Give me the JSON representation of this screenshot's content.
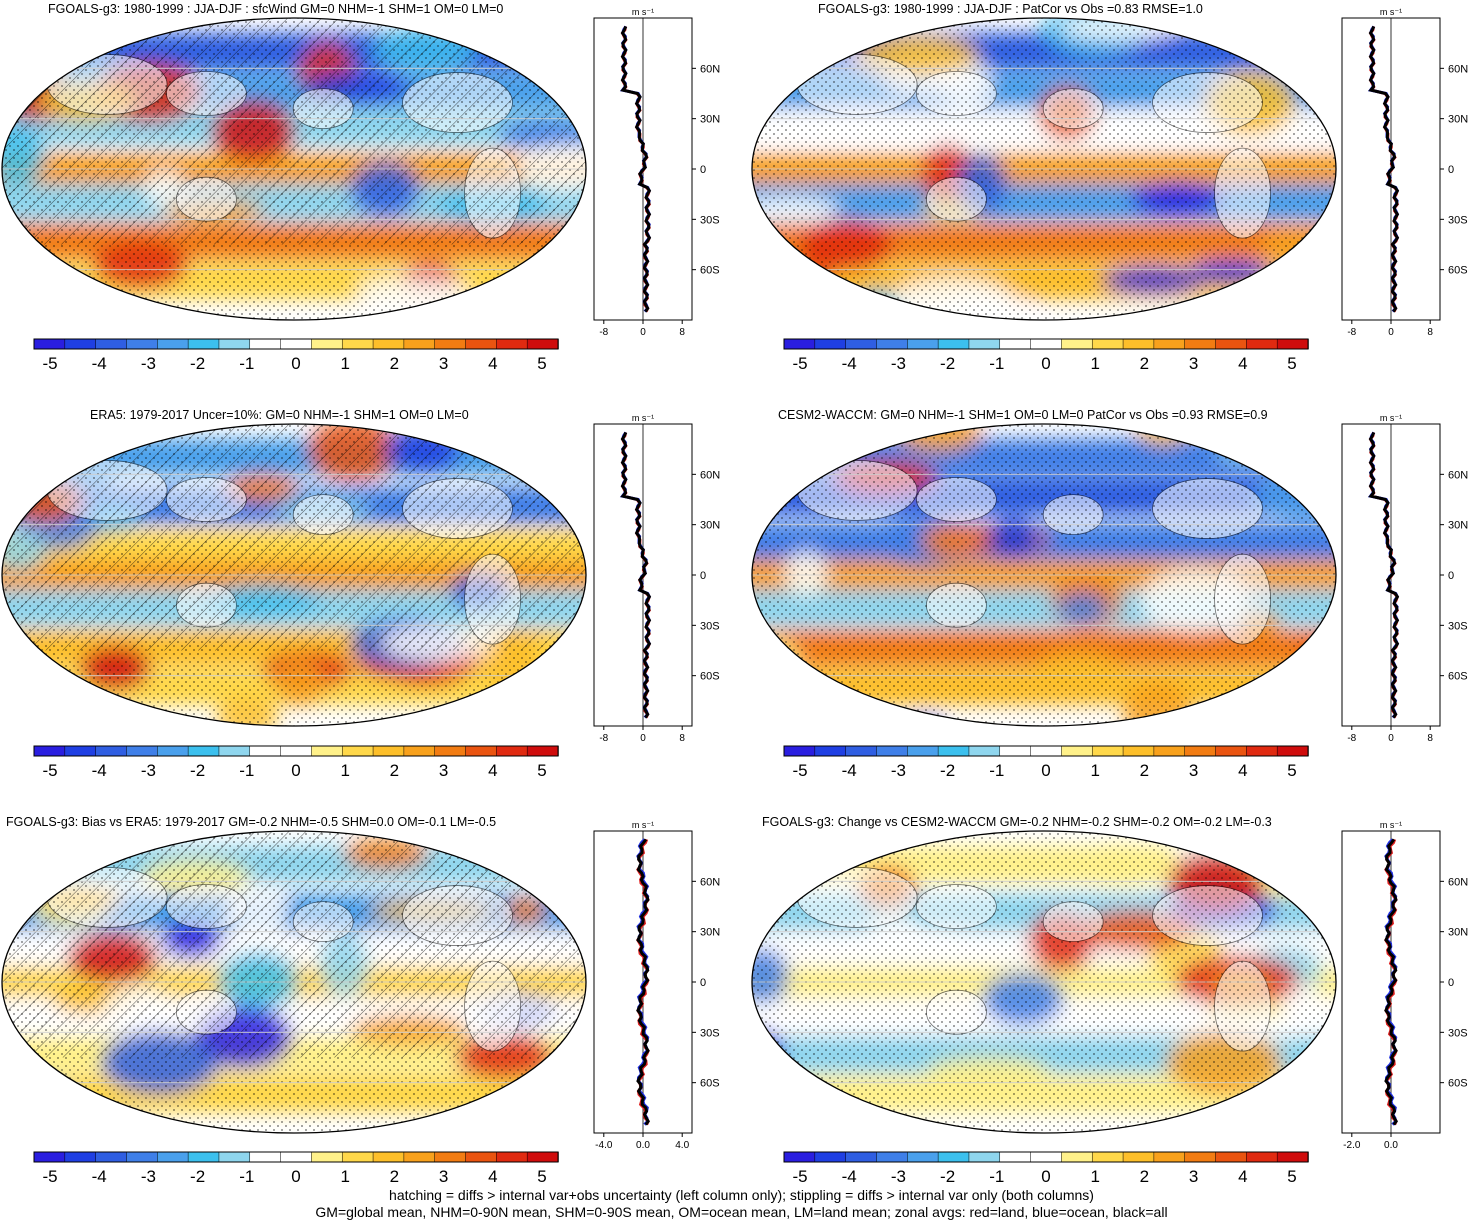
{
  "units_label": "m s⁻¹",
  "colorbar": {
    "ticks": [
      "-5",
      "-4",
      "-3",
      "-2",
      "-1",
      "0",
      "1",
      "2",
      "3",
      "4",
      "5"
    ],
    "colors": [
      "#2a1ee0",
      "#1f3fe3",
      "#2f5ee2",
      "#3f7fe8",
      "#4aa0ec",
      "#3cc0ee",
      "#8fd6ee",
      "#ffffff",
      "#ffffff",
      "#fff18a",
      "#ffd84a",
      "#fdbf2a",
      "#f8a11c",
      "#f27c12",
      "#ea5410",
      "#e02a10",
      "#cf0c0c"
    ]
  },
  "panels": [
    {
      "title": "FGOALS-g3: 1980-1999 : JJA-DJF : sfcWind GM=0 NHM=-1 SHM=1 OM=0 LM=0",
      "variant": 0,
      "hatch": true
    },
    {
      "title": "FGOALS-g3: 1980-1999 : JJA-DJF : PatCor vs Obs =0.83 RMSE=1.0",
      "variant": 1,
      "hatch": false
    },
    {
      "title": "ERA5: 1979-2017 Uncer=10%: GM=0 NHM=-1 SHM=1 OM=0 LM=0",
      "variant": 2,
      "hatch": true
    },
    {
      "title": "CESM2-WACCM: GM=0 NHM=-1 SHM=1 OM=0 LM=0 PatCor vs Obs =0.93 RMSE=0.9",
      "variant": 3,
      "hatch": false
    },
    {
      "title": "FGOALS-g3: Bias vs ERA5: 1979-2017 GM=-0.2 NHM=-0.5 SHM=0.0 OM=-0.1 LM=-0.5",
      "variant": 4,
      "hatch": true
    },
    {
      "title": "FGOALS-g3: Change vs CESM2-WACCM GM=-0.2 NHM=-0.2 SHM=-0.2 OM=-0.2 LM=-0.3",
      "variant": 5,
      "hatch": false
    }
  ],
  "zonal": [
    {
      "xlim": [
        -10,
        10
      ],
      "xticks": [
        "-8",
        "0",
        "8"
      ],
      "xtick_values": [
        -8,
        0,
        8
      ],
      "lat_labels": [
        "60N",
        "30N",
        "0",
        "30S",
        "60S"
      ],
      "lat_values": [
        60,
        30,
        0,
        -30,
        -60
      ]
    },
    {
      "xlim": [
        -10,
        10
      ],
      "xticks": [
        "-8",
        "0",
        "8"
      ],
      "xtick_values": [
        -8,
        0,
        8
      ],
      "lat_labels": [
        "60N",
        "30N",
        "0",
        "30S",
        "60S"
      ],
      "lat_values": [
        60,
        30,
        0,
        -30,
        -60
      ]
    },
    {
      "xlim": [
        -10,
        10
      ],
      "xticks": [
        "-8",
        "0",
        "8"
      ],
      "xtick_values": [
        -8,
        0,
        8
      ],
      "lat_labels": [
        "60N",
        "30N",
        "0",
        "30S",
        "60S"
      ],
      "lat_values": [
        60,
        30,
        0,
        -30,
        -60
      ]
    },
    {
      "xlim": [
        -10,
        10
      ],
      "xticks": [
        "-8",
        "0",
        "8"
      ],
      "xtick_values": [
        -8,
        0,
        8
      ],
      "lat_labels": [
        "60N",
        "30N",
        "0",
        "30S",
        "60S"
      ],
      "lat_values": [
        60,
        30,
        0,
        -30,
        -60
      ]
    },
    {
      "xlim": [
        -5,
        5
      ],
      "xticks": [
        "-4.0",
        "0.0",
        "4.0"
      ],
      "xtick_values": [
        -4,
        0,
        4
      ],
      "lat_labels": [
        "60N",
        "30N",
        "0",
        "30S",
        "60S"
      ],
      "lat_values": [
        60,
        30,
        0,
        -30,
        -60
      ]
    },
    {
      "xlim": [
        -2.5,
        2.5
      ],
      "xticks": [
        "-2.0",
        "0.0"
      ],
      "xtick_values": [
        -2,
        0
      ],
      "lat_labels": [
        "60N",
        "30N",
        "0",
        "30S",
        "60S"
      ],
      "lat_values": [
        60,
        30,
        0,
        -30,
        -60
      ]
    }
  ],
  "chart_data": {
    "type": "heatmap",
    "description_fields": "Six global map panels of surface wind speed seasonal difference (JJA-DJF) with zonal-average line panels",
    "colorbar_ticks": [
      -5,
      -4,
      -3,
      -2,
      -1,
      0,
      1,
      2,
      3,
      4,
      5
    ],
    "zonal_series": [
      "land (red)",
      "ocean (blue)",
      "all (black)"
    ],
    "legend": [
      "red=land",
      "blue=ocean",
      "black=all"
    ]
  },
  "footer": {
    "line1": "hatching = diffs > internal var+obs uncertainty (left column only); stippling = diffs > internal var only (both columns)",
    "line2": "GM=global mean, NHM=0-90N mean, SHM=0-90S mean, OM=ocean mean, LM=land mean; zonal avgs: red=land, blue=ocean, black=all"
  }
}
